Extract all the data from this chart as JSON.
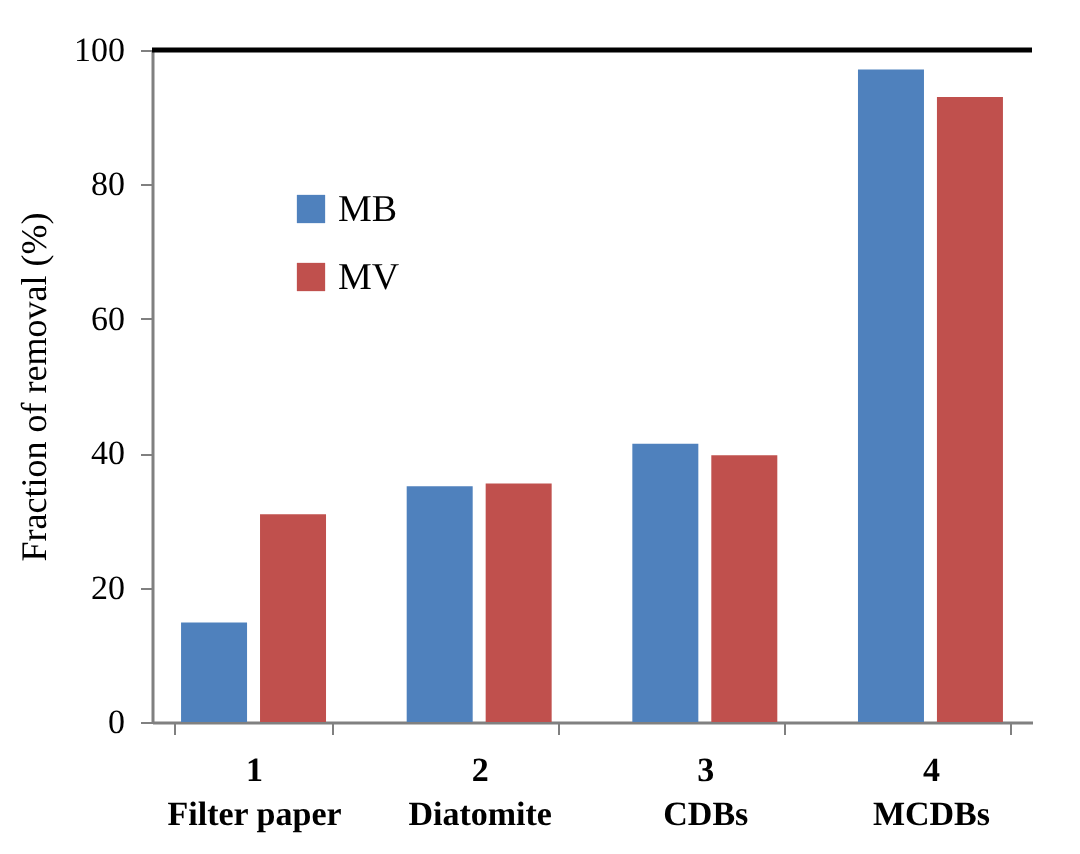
{
  "chart_data": {
    "type": "bar",
    "ylabel": "Fraction of removal (%)",
    "categories": [
      "1\nFilter paper",
      "2\nDiatomite",
      "3\nCDBs",
      "4\nMCDBs"
    ],
    "series": [
      {
        "name": "MB",
        "color": "#4f81bd",
        "values": [
          14.8,
          35.1,
          41.4,
          97.1
        ]
      },
      {
        "name": "MV",
        "color": "#c0504d",
        "values": [
          30.9,
          35.5,
          39.7,
          93.0
        ]
      }
    ],
    "ylim": [
      0,
      100
    ],
    "yticks": [
      0,
      20,
      40,
      60,
      80,
      100
    ],
    "grid": false,
    "legend": "top left"
  }
}
